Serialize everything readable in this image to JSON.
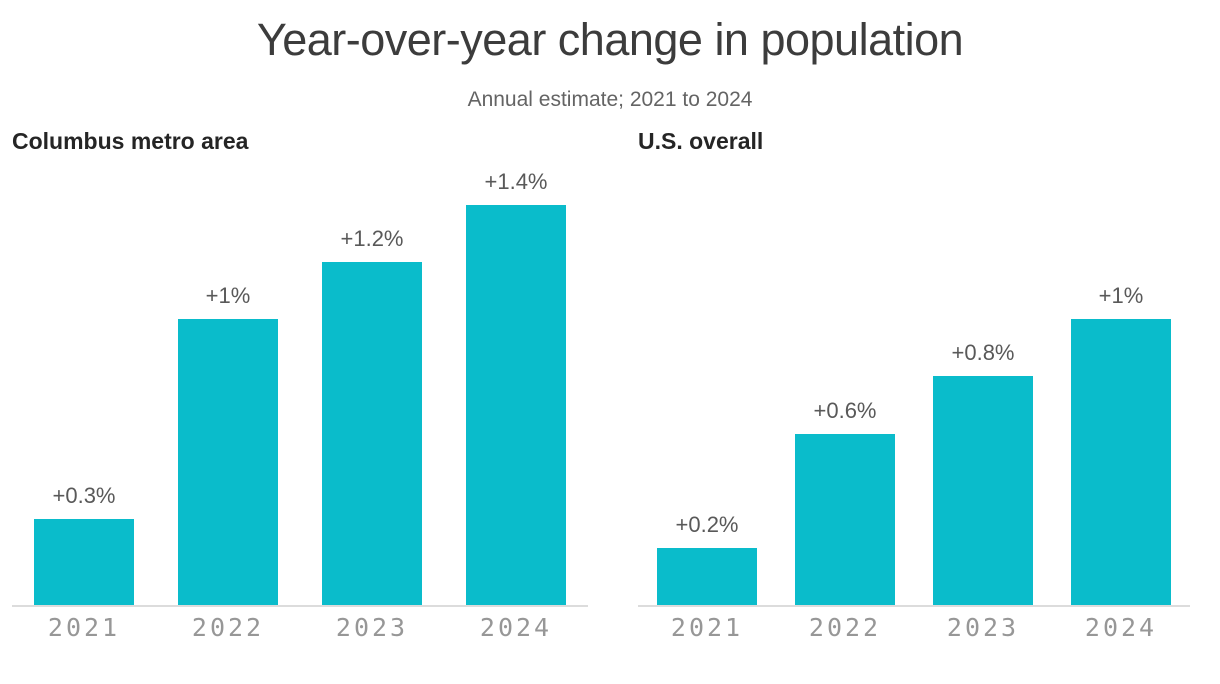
{
  "header": {
    "title": "Year-over-year change in population",
    "subtitle": "Annual estimate; 2021 to 2024"
  },
  "colors": {
    "bar": "#0abccb",
    "title_text": "#3c3c3c",
    "subtitle_text": "#646464",
    "panel_title_text": "#252525",
    "value_label_text": "#595959",
    "tick_label_text": "#979797",
    "axis_line": "#dcdcdc"
  },
  "chart_data": [
    {
      "type": "bar",
      "title": "Columbus metro area",
      "categories": [
        "2021",
        "2022",
        "2023",
        "2024"
      ],
      "values": [
        0.3,
        1.0,
        1.2,
        1.4
      ],
      "value_labels": [
        "+0.3%",
        "+1%",
        "+1.2%",
        "+1.4%"
      ],
      "xlabel": "",
      "ylabel": "",
      "ylim": [
        0,
        1.4
      ],
      "grid": false,
      "legend": "none",
      "unit": "percent"
    },
    {
      "type": "bar",
      "title": "U.S. overall",
      "categories": [
        "2021",
        "2022",
        "2023",
        "2024"
      ],
      "values": [
        0.2,
        0.6,
        0.8,
        1.0
      ],
      "value_labels": [
        "+0.2%",
        "+0.6%",
        "+0.8%",
        "+1%"
      ],
      "xlabel": "",
      "ylabel": "",
      "ylim": [
        0,
        1.4
      ],
      "grid": false,
      "legend": "none",
      "unit": "percent"
    }
  ]
}
